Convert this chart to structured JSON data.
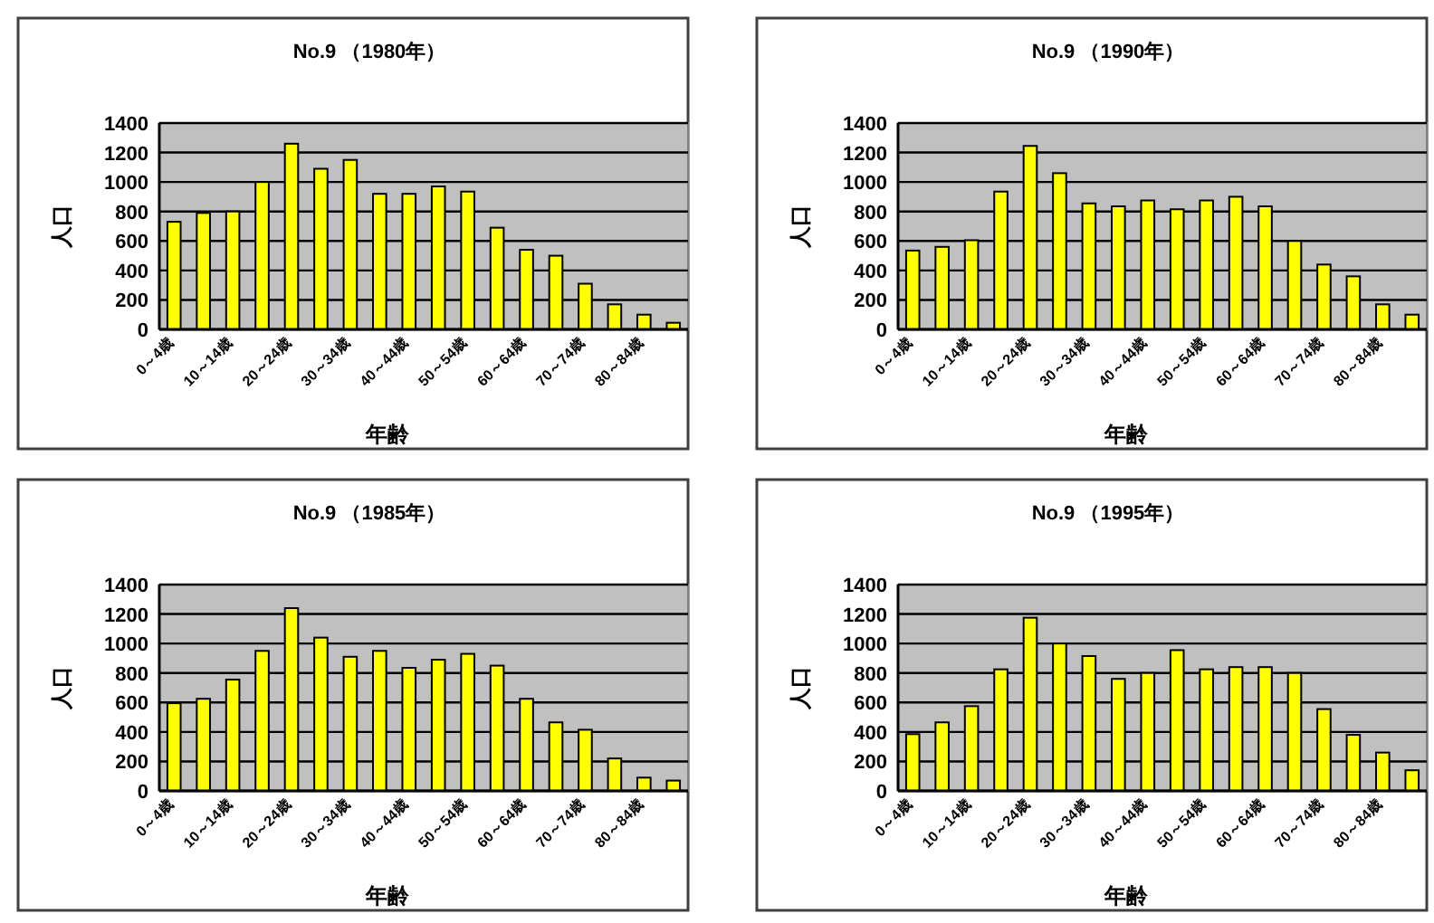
{
  "chart_data": [
    {
      "type": "bar",
      "title": "No.9 （1980年）",
      "xlabel": "年齢",
      "ylabel": "人口",
      "categories": [
        "0～4歳",
        null,
        "10～14歳",
        null,
        "20～24歳",
        null,
        "30～34歳",
        null,
        "40～44歳",
        null,
        "50～54歳",
        null,
        "60～64歳",
        null,
        "70～74歳",
        null,
        "80～84歳",
        null
      ],
      "values": [
        730,
        790,
        800,
        1000,
        1260,
        1090,
        1150,
        920,
        920,
        970,
        935,
        690,
        540,
        500,
        310,
        170,
        100,
        45
      ],
      "color": "#ffff00",
      "ylim": [
        0,
        1400
      ],
      "yticks": [
        0,
        200,
        400,
        600,
        800,
        1000,
        1200,
        1400
      ],
      "grid": "y"
    },
    {
      "type": "bar",
      "title": "No.9 （1990年）",
      "xlabel": "年齢",
      "ylabel": "人口",
      "categories": [
        "0～4歳",
        null,
        "10～14歳",
        null,
        "20～24歳",
        null,
        "30～34歳",
        null,
        "40～44歳",
        null,
        "50～54歳",
        null,
        "60～64歳",
        null,
        "70～74歳",
        null,
        "80～84歳",
        null
      ],
      "values": [
        535,
        560,
        605,
        935,
        1245,
        1060,
        855,
        835,
        875,
        815,
        875,
        900,
        835,
        600,
        440,
        360,
        170,
        100
      ],
      "color": "#ffff00",
      "ylim": [
        0,
        1400
      ],
      "yticks": [
        0,
        200,
        400,
        600,
        800,
        1000,
        1200,
        1400
      ],
      "grid": "y"
    },
    {
      "type": "bar",
      "title": "No.9 （1985年）",
      "xlabel": "年齢",
      "ylabel": "人口",
      "categories": [
        "0～4歳",
        null,
        "10～14歳",
        null,
        "20～24歳",
        null,
        "30～34歳",
        null,
        "40～44歳",
        null,
        "50～54歳",
        null,
        "60～64歳",
        null,
        "70～74歳",
        null,
        "80～84歳",
        null
      ],
      "values": [
        595,
        625,
        755,
        950,
        1240,
        1040,
        910,
        950,
        835,
        890,
        930,
        850,
        625,
        465,
        415,
        220,
        90,
        70
      ],
      "color": "#ffff00",
      "ylim": [
        0,
        1400
      ],
      "yticks": [
        0,
        200,
        400,
        600,
        800,
        1000,
        1200,
        1400
      ],
      "grid": "y"
    },
    {
      "type": "bar",
      "title": "No.9 （1995年）",
      "xlabel": "年齢",
      "ylabel": "人口",
      "categories": [
        "0～4歳",
        null,
        "10～14歳",
        null,
        "20～24歳",
        null,
        "30～34歳",
        null,
        "40～44歳",
        null,
        "50～54歳",
        null,
        "60～64歳",
        null,
        "70～74歳",
        null,
        "80～84歳",
        null
      ],
      "values": [
        385,
        465,
        575,
        825,
        1175,
        1000,
        915,
        760,
        800,
        955,
        825,
        840,
        840,
        800,
        555,
        380,
        260,
        140
      ],
      "color": "#ffff00",
      "ylim": [
        0,
        1400
      ],
      "yticks": [
        0,
        200,
        400,
        600,
        800,
        1000,
        1200,
        1400
      ],
      "grid": "y"
    }
  ]
}
